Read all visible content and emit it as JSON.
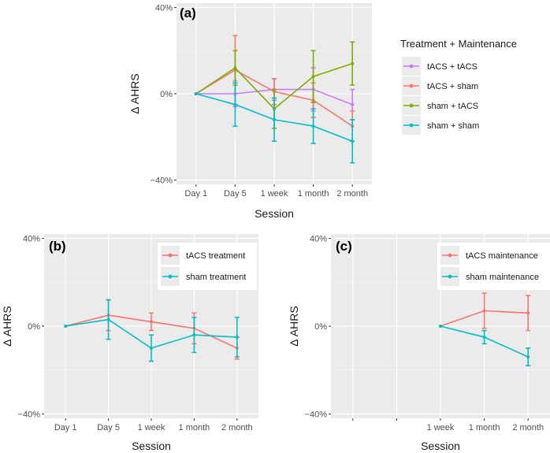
{
  "chart_data": [
    {
      "id": "a",
      "type": "line",
      "panel_label": "(a)",
      "xlabel": "Session",
      "ylabel": "Δ AHRS",
      "categories": [
        "Day 1",
        "Day 5",
        "1 week",
        "1 month",
        "2 month"
      ],
      "ylim": [
        -42,
        42
      ],
      "yticks": [
        -40,
        0,
        40
      ],
      "ytick_labels": [
        "−40%",
        "0%",
        "40%"
      ],
      "legend_title": "Treatment + Maintenance",
      "legend_position": "right",
      "series": [
        {
          "name": "tACS + tACS",
          "color": "#c77cff",
          "values": [
            0,
            0,
            2,
            2,
            -5
          ],
          "err": [
            0,
            6,
            5,
            10,
            7
          ]
        },
        {
          "name": "tACS + sham",
          "color": "#f8766d",
          "values": [
            0,
            11,
            1,
            -3,
            -15
          ],
          "err": [
            0,
            16,
            6,
            8,
            7
          ]
        },
        {
          "name": "sham + tACS",
          "color": "#7cae00",
          "values": [
            0,
            12,
            -7,
            8,
            14
          ],
          "err": [
            0,
            8,
            9,
            12,
            10
          ]
        },
        {
          "name": "sham + sham",
          "color": "#00bfc4",
          "values": [
            0,
            -5,
            -12,
            -15,
            -22
          ],
          "err": [
            0,
            10,
            10,
            8,
            10
          ]
        }
      ]
    },
    {
      "id": "b",
      "type": "line",
      "panel_label": "(b)",
      "xlabel": "Session",
      "ylabel": "Δ AHRS",
      "categories": [
        "Day 1",
        "Day 5",
        "1 week",
        "1 month",
        "2 month"
      ],
      "ylim": [
        -42,
        42
      ],
      "yticks": [
        -40,
        0,
        40
      ],
      "ytick_labels": [
        "−40%",
        "0%",
        "40%"
      ],
      "legend_title": "",
      "legend_position": "top-right",
      "series": [
        {
          "name": "tACS treatment",
          "color": "#f8766d",
          "values": [
            0,
            5,
            2,
            -1,
            -10
          ],
          "err": [
            0,
            7,
            4,
            7,
            5
          ]
        },
        {
          "name": "sham treatment",
          "color": "#00bfc4",
          "values": [
            0,
            3,
            -10,
            -4,
            -5
          ],
          "err": [
            0,
            9,
            6,
            8,
            9
          ]
        }
      ]
    },
    {
      "id": "c",
      "type": "line",
      "panel_label": "(c)",
      "xlabel": "Session",
      "ylabel": "Δ AHRS",
      "categories": [
        "",
        "",
        "1 week",
        "1 month",
        "2 month"
      ],
      "ylim": [
        -42,
        42
      ],
      "yticks": [
        -40,
        0,
        40
      ],
      "ytick_labels": [
        "−40%",
        "0%",
        "40%"
      ],
      "legend_title": "",
      "legend_position": "top-right",
      "series": [
        {
          "name": "tACS maintenance",
          "color": "#f8766d",
          "values": [
            null,
            null,
            0,
            7,
            6
          ],
          "err": [
            0,
            0,
            0,
            8,
            8
          ]
        },
        {
          "name": "sham maintenance",
          "color": "#00bfc4",
          "values": [
            null,
            null,
            0,
            -5,
            -14
          ],
          "err": [
            0,
            0,
            0,
            3,
            4
          ]
        }
      ]
    }
  ]
}
